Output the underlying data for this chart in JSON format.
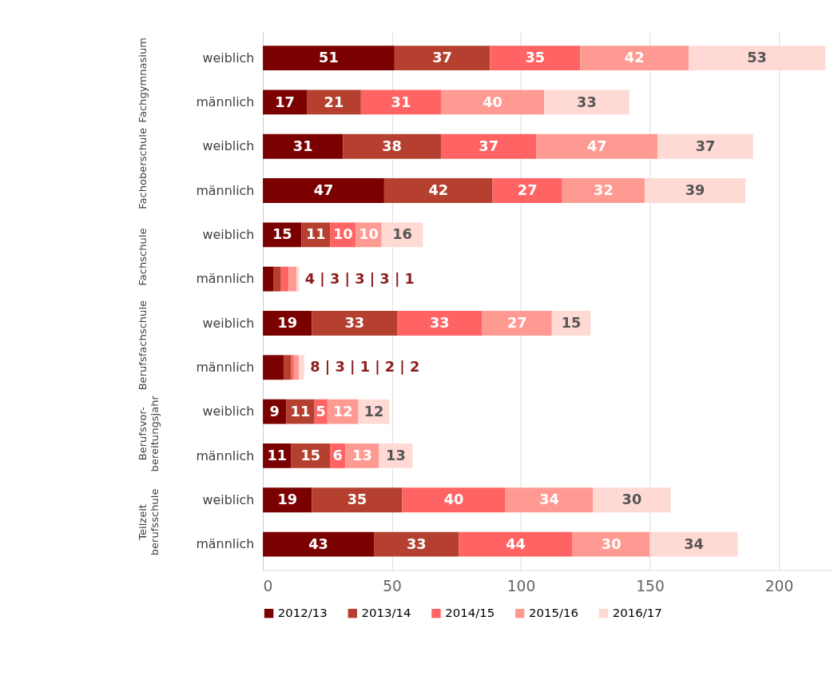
{
  "chart_data": {
    "type": "bar",
    "orientation": "horizontal",
    "stacked": true,
    "categories": [
      "weiblich",
      "männlich",
      "weiblich",
      "männlich",
      "weiblich",
      "männlich",
      "weiblich",
      "männlich",
      "weiblich",
      "männlich",
      "weiblich",
      "männlich"
    ],
    "annotations": [
      "Fachgymnasium",
      "Fachoberschule",
      "Fachschule",
      "Berufsfachschule",
      "Berufsvor-\nbereitungsjahr",
      "Teilzeit\nberufsschule",
      {
        "text": "4 | 3 | 3 | 3 | 1",
        "x": 14
      },
      {
        "text": "8 | 3 | 1 | 2 | 2",
        "x": 16
      }
    ],
    "series": [
      {
        "name": "2012/13",
        "color": "#7b0000",
        "values": [
          51,
          17,
          31,
          47,
          15,
          4,
          19,
          8,
          9,
          11,
          19,
          43
        ],
        "value_labels": [
          "51",
          "17",
          "31",
          "47",
          "15",
          null,
          "19",
          null,
          "9",
          "11",
          "19",
          "43"
        ]
      },
      {
        "name": "2013/14",
        "color": "#b5402f",
        "values": [
          37,
          21,
          38,
          42,
          11,
          3,
          33,
          3,
          11,
          15,
          35,
          33
        ],
        "value_labels": [
          "37",
          "21",
          "38",
          "42",
          "11",
          null,
          "33",
          null,
          "11",
          "15",
          "35",
          "33"
        ]
      },
      {
        "name": "2014/15",
        "color": "#ff6363",
        "values": [
          35,
          31,
          37,
          27,
          10,
          3,
          33,
          1,
          5,
          6,
          40,
          44
        ],
        "value_labels": [
          "35",
          "31",
          "37",
          "27",
          "10",
          null,
          "33",
          null,
          "5",
          "6",
          "40",
          "44"
        ]
      },
      {
        "name": "2015/16",
        "color": "#ff9a92",
        "values": [
          42,
          40,
          47,
          32,
          10,
          3,
          27,
          2,
          12,
          13,
          34,
          30
        ],
        "value_labels": [
          "42",
          "40",
          "47",
          "32",
          "10",
          null,
          "27",
          null,
          "12",
          "13",
          "34",
          "30"
        ]
      },
      {
        "name": "2016/17",
        "color": "#ffdad5",
        "values": [
          53,
          33,
          37,
          39,
          16,
          1,
          15,
          2,
          12,
          13,
          30,
          34
        ],
        "value_labels": [
          "53",
          "33",
          "37",
          "39",
          "16",
          null,
          "15",
          null,
          "12",
          "13",
          "30",
          "34"
        ]
      }
    ],
    "xlim": [
      0,
      220
    ],
    "xticks": [
      0,
      50,
      100,
      150,
      200
    ],
    "grid": "x",
    "legend": "bottom"
  }
}
